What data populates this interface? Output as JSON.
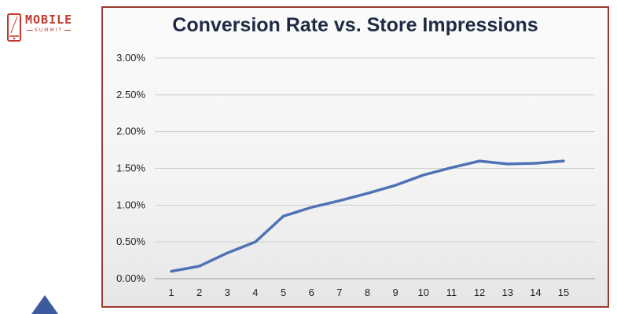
{
  "logo": {
    "name": "MOBILE",
    "sub": "SUMMIT"
  },
  "chart_data": {
    "type": "line",
    "title": "Conversion Rate vs. Store Impressions",
    "xlabel": "",
    "ylabel": "",
    "x": [
      1,
      2,
      3,
      4,
      5,
      6,
      7,
      8,
      9,
      10,
      11,
      12,
      13,
      14,
      15
    ],
    "series": [
      {
        "values": [
          0.1,
          0.17,
          0.35,
          0.5,
          0.85,
          0.97,
          1.06,
          1.16,
          1.27,
          1.41,
          1.51,
          1.6,
          1.56,
          1.57,
          1.6
        ]
      }
    ],
    "ylim": [
      0,
      3
    ],
    "yticks": [
      0,
      0.5,
      1.0,
      1.5,
      2.0,
      2.5,
      3.0
    ],
    "ytick_labels": [
      "0.00%",
      "0.50%",
      "1.00%",
      "1.50%",
      "2.00%",
      "2.50%",
      "3.00%"
    ],
    "xtick_labels": [
      "1",
      "2",
      "3",
      "4",
      "5",
      "6",
      "7",
      "8",
      "9",
      "10",
      "11",
      "12",
      "13",
      "14",
      "15"
    ],
    "grid": true,
    "legend": "none",
    "line_color": "#4e72b5"
  }
}
